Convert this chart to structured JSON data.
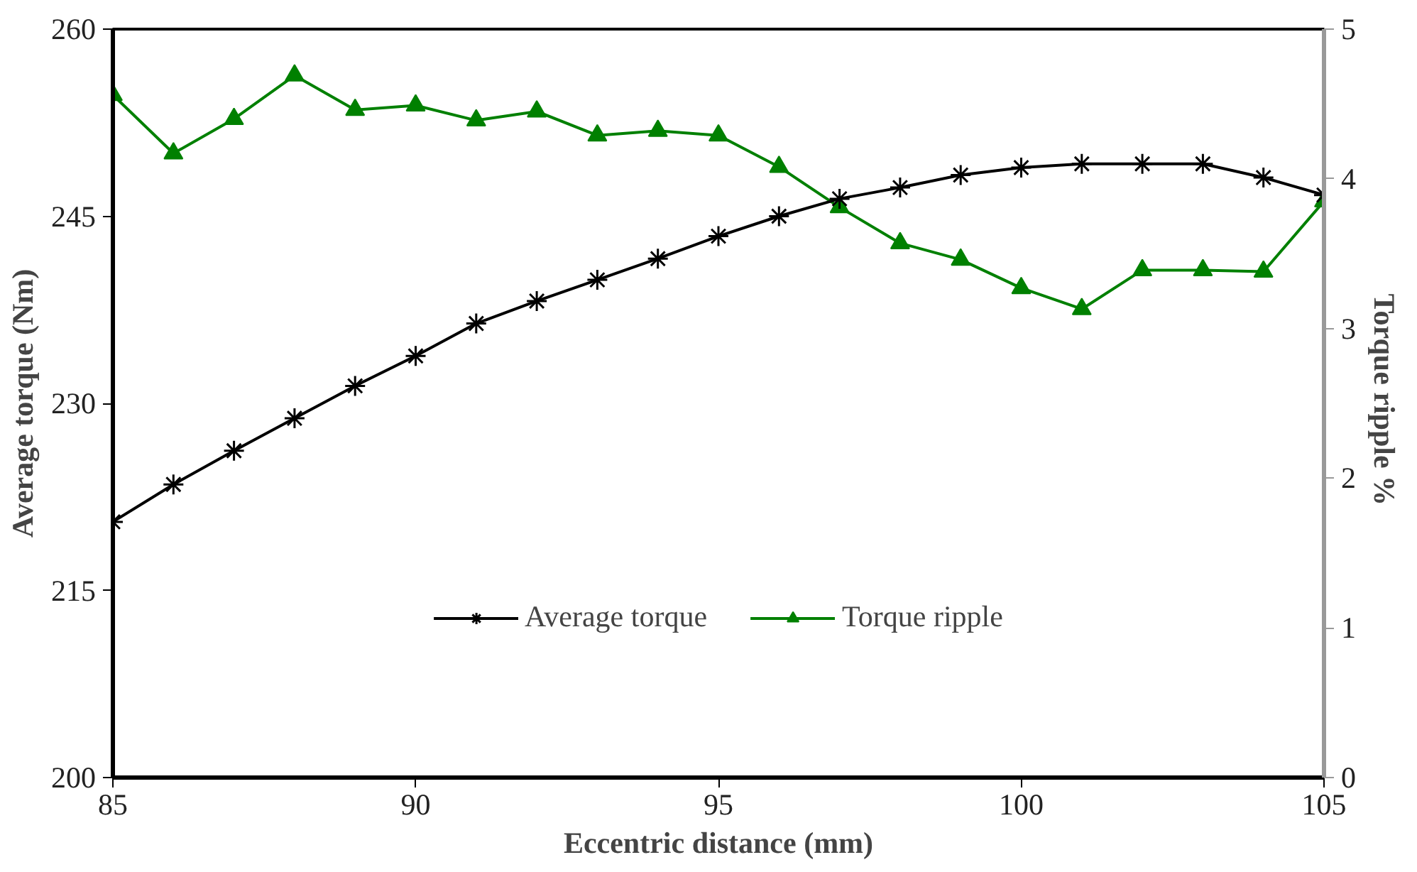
{
  "chart_data": {
    "type": "line",
    "xlabel": "Eccentric distance (mm)",
    "ylabel": "Average torque (Nm)",
    "y2label": "Torque ripple  %",
    "x": [
      85,
      86,
      87,
      88,
      89,
      90,
      91,
      92,
      93,
      94,
      95,
      96,
      97,
      98,
      99,
      100,
      101,
      102,
      103,
      104,
      105
    ],
    "xlim": [
      85,
      105
    ],
    "xticks": [
      85,
      90,
      95,
      100,
      105
    ],
    "ylim": [
      200,
      260
    ],
    "yticks": [
      200,
      215,
      230,
      245,
      260
    ],
    "y2lim": [
      0,
      5
    ],
    "y2ticks": [
      0,
      1,
      2,
      3,
      4,
      5
    ],
    "grid": false,
    "legend": "bottom",
    "series": [
      {
        "name": "Average torque",
        "color": "#000000",
        "marker": "cross",
        "values": [
          220.5,
          223.5,
          226.2,
          228.8,
          231.4,
          233.8,
          236.4,
          238.2,
          239.9,
          241.6,
          243.4,
          245.0,
          246.4,
          247.3,
          248.3,
          248.9,
          249.2,
          249.2,
          249.2,
          248.1,
          246.7
        ]
      },
      {
        "name": "Torque ripple",
        "color": "#008000",
        "marker": "triangle",
        "axis": "y2",
        "values": [
          4.56,
          4.17,
          4.4,
          4.69,
          4.46,
          4.49,
          4.39,
          4.45,
          4.29,
          4.32,
          4.29,
          4.08,
          3.81,
          3.57,
          3.46,
          3.27,
          3.13,
          3.39,
          3.39,
          3.38,
          3.85
        ]
      }
    ]
  }
}
